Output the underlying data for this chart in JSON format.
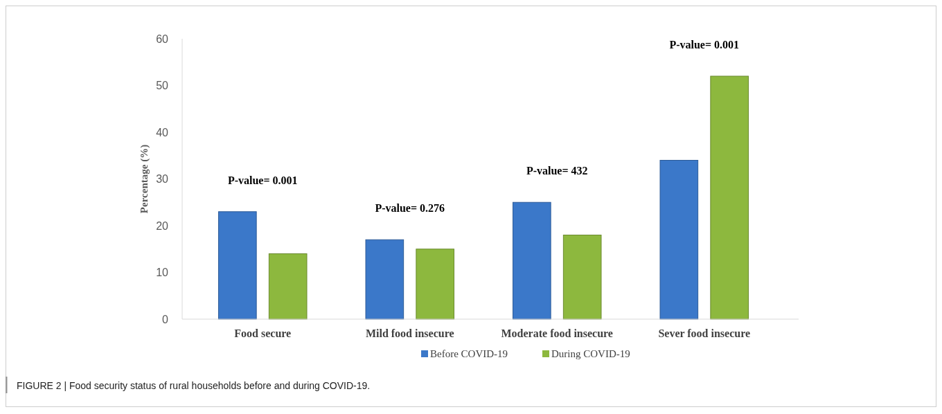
{
  "chart_data": {
    "type": "bar",
    "ylabel": "Percentage (%)",
    "categories": [
      "Food secure",
      "Mild food insecure",
      "Moderate food insecure",
      "Sever food insecure"
    ],
    "series": [
      {
        "name": "Before COVID-19",
        "color": "#3b78c9",
        "values": [
          23,
          17,
          25,
          34
        ]
      },
      {
        "name": "During COVID-19",
        "color": "#8db83e",
        "values": [
          14,
          15,
          18,
          52
        ]
      }
    ],
    "ylim": [
      0,
      60
    ],
    "yticks": [
      0,
      10,
      20,
      30,
      40,
      50,
      60
    ],
    "grid": false,
    "legend": "bottom",
    "annotations": [
      "P-value= 0.001",
      "P-value= 0.276",
      "P-value= 432",
      "P-value= 0.001",
      "FIGURE 2 | Food security status of rural households before and during COVID-19."
    ]
  }
}
